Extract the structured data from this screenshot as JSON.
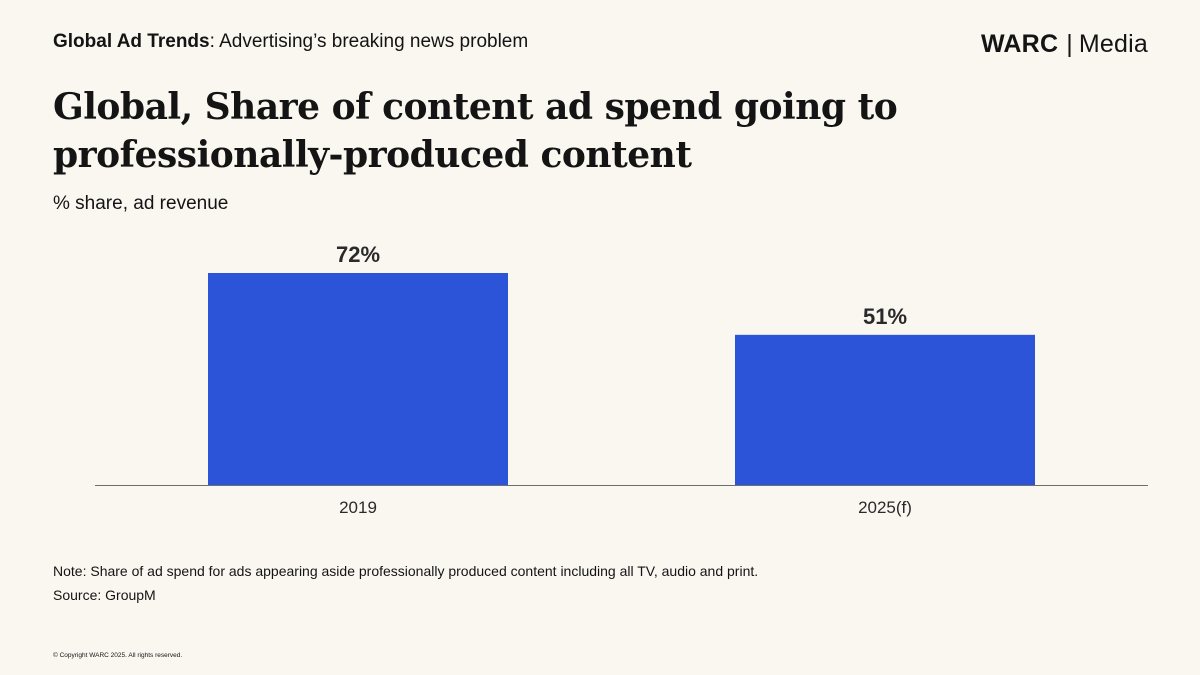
{
  "header": {
    "series_bold": "Global Ad Trends",
    "series_rest": ": Advertising’s breaking news problem",
    "brand_primary": "WARC",
    "brand_separator": "|",
    "brand_secondary": "Media"
  },
  "chart_data": {
    "type": "bar",
    "title": "Global, Share of content ad spend going to professionally-produced content",
    "subtitle": "% share, ad revenue",
    "categories": [
      "2019",
      "2025(f)"
    ],
    "values": [
      72,
      51
    ],
    "value_labels": [
      "72%",
      "51%"
    ],
    "ylim": [
      0,
      72
    ],
    "grid": false,
    "legend": "none",
    "bar_color": "#2b54d9",
    "axis_color": "#6e6e6e"
  },
  "footer": {
    "note": "Note: Share of ad spend for ads appearing aside professionally produced content including all TV, audio and print.",
    "source": "Source: GroupM",
    "copyright": "© Copyright WARC 2025. All rights reserved."
  }
}
